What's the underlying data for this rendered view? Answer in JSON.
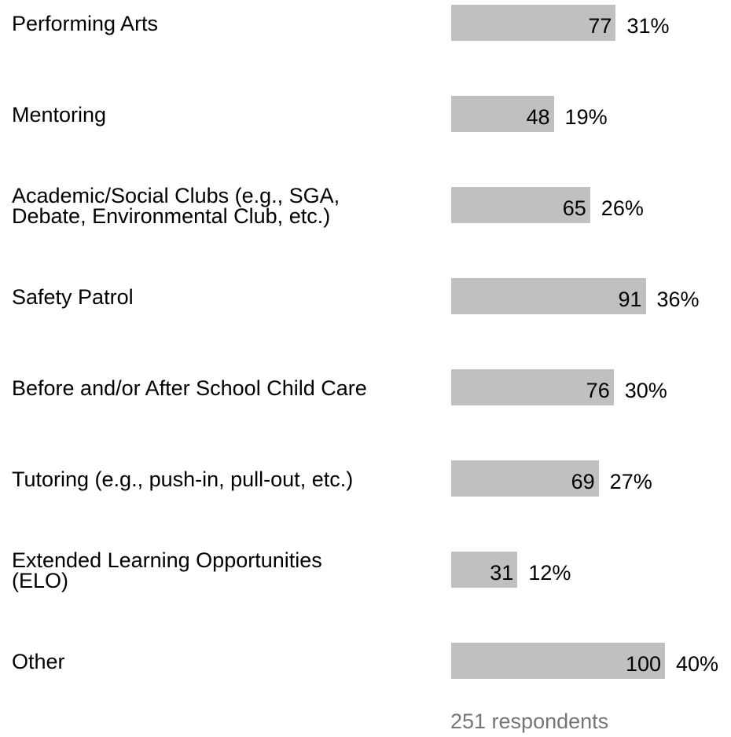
{
  "chart_data": {
    "type": "bar",
    "orientation": "horizontal",
    "categories": [
      "Performing Arts",
      "Mentoring",
      "Academic/Social Clubs (e.g., SGA,\nDebate, Environmental Club, etc.)",
      "Safety Patrol",
      "Before and/or After School Child Care",
      "Tutoring (e.g., push-in, pull-out, etc.)",
      "Extended Learning Opportunities\n(ELO)",
      "Other"
    ],
    "values": [
      77,
      48,
      65,
      91,
      76,
      69,
      31,
      100
    ],
    "percent_labels": [
      "31%",
      "19%",
      "26%",
      "36%",
      "30%",
      "27%",
      "12%",
      "40%"
    ],
    "title": "",
    "xlabel": "",
    "ylabel": "",
    "grid": false,
    "bar_color": "#c0c0c0",
    "footer": "251 respondents"
  }
}
